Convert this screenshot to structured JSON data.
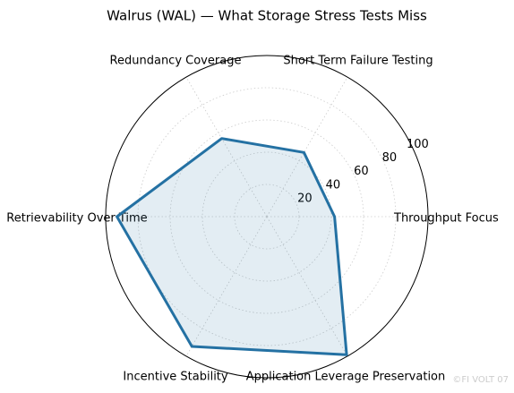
{
  "chart_data": {
    "type": "radar",
    "title": "Walrus (WAL) — What Storage Stress Tests Miss",
    "categories": [
      "Throughput Focus",
      "Short Term Failure Testing",
      "Redundancy Coverage",
      "Retrievability Over Time",
      "Incentive Stability",
      "Application Leverage Preservation"
    ],
    "values": [
      42,
      46,
      56,
      93,
      93,
      99
    ],
    "color": "#2471a3",
    "rlim": [
      0,
      100
    ],
    "rticks": [
      20,
      40,
      60,
      80,
      100
    ],
    "grid": true,
    "watermark": "©FI VOLT 07"
  }
}
